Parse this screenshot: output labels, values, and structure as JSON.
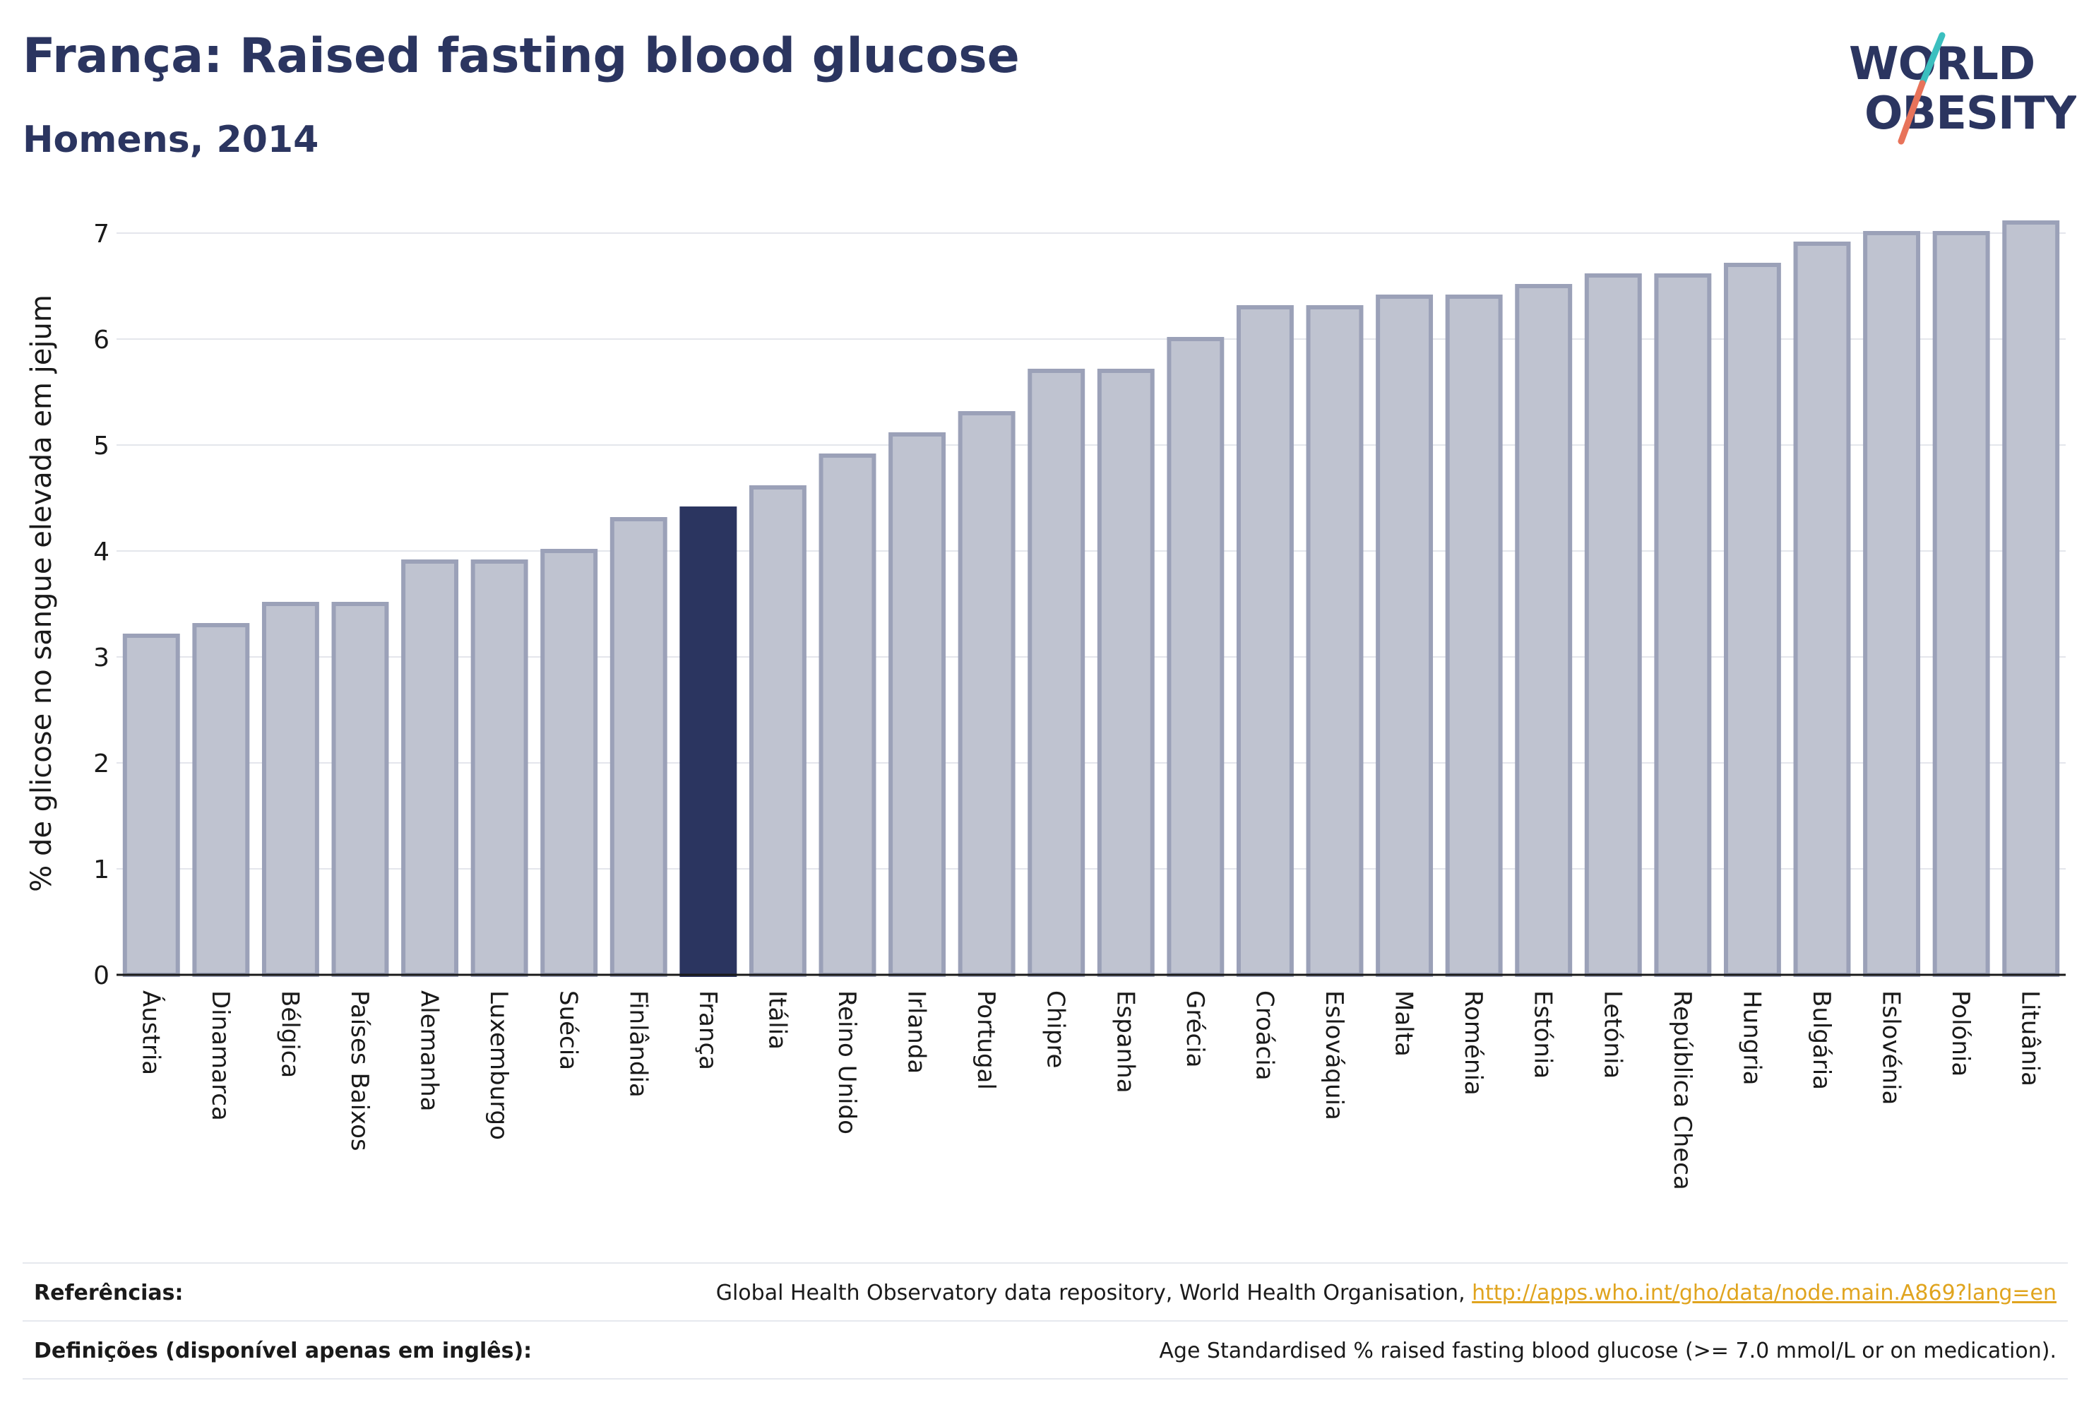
{
  "header": {
    "title": "França: Raised fasting blood glucose",
    "subtitle": "Homens, 2014"
  },
  "logo": {
    "line1": "WORLD",
    "line2": "OBESITY",
    "colors": {
      "text": "#2b3560",
      "slash_teal": "#3bbfbf",
      "slash_coral": "#e8735a"
    }
  },
  "chart_data": {
    "type": "bar",
    "title": "França: Raised fasting blood glucose",
    "subtitle": "Homens, 2014",
    "xlabel": "",
    "ylabel": "% de glicose no sangue elevada em jejum",
    "ylim": [
      0,
      7.2
    ],
    "yticks": [
      0,
      1,
      2,
      3,
      4,
      5,
      6,
      7
    ],
    "grid": true,
    "highlight": "França",
    "colors": {
      "bar": "#bfc3d0",
      "bar_edge": "#9ba1b8",
      "highlight": "#2b3560"
    },
    "categories": [
      "Áustria",
      "Dinamarca",
      "Bélgica",
      "Países Baixos",
      "Alemanha",
      "Luxemburgo",
      "Suécia",
      "Finlândia",
      "França",
      "Itália",
      "Reino Unido",
      "Irlanda",
      "Portugal",
      "Chipre",
      "Espanha",
      "Grécia",
      "Croácia",
      "Eslováquia",
      "Malta",
      "Roménia",
      "Estónia",
      "Letónia",
      "República Checa",
      "Hungria",
      "Bulgária",
      "Eslovénia",
      "Polónia",
      "Lituânia"
    ],
    "values": [
      3.2,
      3.3,
      3.5,
      3.5,
      3.9,
      3.9,
      4.0,
      4.3,
      4.4,
      4.6,
      4.9,
      5.1,
      5.3,
      5.7,
      5.7,
      6.0,
      6.3,
      6.3,
      6.4,
      6.4,
      6.5,
      6.6,
      6.6,
      6.7,
      6.9,
      7.0,
      7.0,
      7.1
    ]
  },
  "footer": {
    "references_label": "Referências:",
    "references_text": "Global Health Observatory data repository, World Health Organisation, ",
    "references_link": "http://apps.who.int/gho/data/node.main.A869?lang=en",
    "definitions_label": "Definições (disponível apenas em inglês):",
    "definitions_text": "Age Standardised % raised fasting blood glucose (>= 7.0 mmol/L or on medication)."
  }
}
